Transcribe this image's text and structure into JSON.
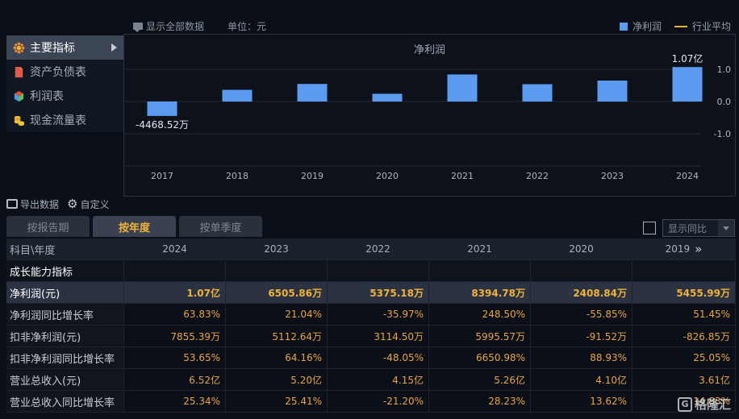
{
  "toolbar": {
    "show_all": "显示全部数据",
    "unit": "单位：元",
    "legend_net_profit": "净利润",
    "legend_industry_avg": "行业平均"
  },
  "menu": {
    "items": [
      {
        "label": "主要指标",
        "icon": "flower-icon",
        "active": true
      },
      {
        "label": "资产负债表",
        "icon": "document-icon",
        "active": false
      },
      {
        "label": "利润表",
        "icon": "cube-icon",
        "active": false
      },
      {
        "label": "现金流量表",
        "icon": "coins-icon",
        "active": false
      }
    ]
  },
  "chart_data": {
    "type": "bar",
    "title": "净利润",
    "categories": [
      "2017",
      "2018",
      "2019",
      "2020",
      "2021",
      "2022",
      "2023",
      "2024"
    ],
    "series": [
      {
        "name": "净利润",
        "values": [
          -0.4469,
          0.3631,
          0.5456,
          0.2409,
          0.8395,
          0.5375,
          0.6506,
          1.07
        ]
      }
    ],
    "yticks": [
      "1.0",
      "0.0",
      "-1.0"
    ],
    "ylim": [
      -2.0,
      1.5
    ],
    "annotations": [
      {
        "category": "2017",
        "text": "-4468.52万"
      },
      {
        "category": "2024",
        "text": "1.07亿"
      }
    ],
    "bar_color": "#5b9bf0",
    "grid": true
  },
  "tools": {
    "export": "导出数据",
    "customize": "自定义"
  },
  "tabs": [
    "按报告期",
    "按年度",
    "按单季度"
  ],
  "active_tab": 1,
  "yoy_select": "显示同比",
  "table": {
    "header_label": "科目\\年度",
    "years": [
      "2024",
      "2023",
      "2022",
      "2021",
      "2020",
      "2019"
    ],
    "section_label": "成长能力指标",
    "rows": [
      {
        "label": "净利润(元)",
        "values": [
          "1.07亿",
          "6505.86万",
          "5375.18万",
          "8394.78万",
          "2408.84万",
          "5455.99万"
        ],
        "highlight": true
      },
      {
        "label": "净利润同比增长率",
        "values": [
          "63.83%",
          "21.04%",
          "-35.97%",
          "248.50%",
          "-55.85%",
          "51.45%"
        ]
      },
      {
        "label": "扣非净利润(元)",
        "values": [
          "7855.39万",
          "5112.64万",
          "3114.50万",
          "5995.57万",
          "-91.52万",
          "-826.85万"
        ]
      },
      {
        "label": "扣非净利润同比增长率",
        "values": [
          "53.65%",
          "64.16%",
          "-48.05%",
          "6650.98%",
          "88.93%",
          "25.05%"
        ]
      },
      {
        "label": "营业总收入(元)",
        "values": [
          "6.52亿",
          "5.20亿",
          "4.15亿",
          "5.26亿",
          "4.10亿",
          "3.61亿"
        ]
      },
      {
        "label": "营业总收入同比增长率",
        "values": [
          "25.34%",
          "25.41%",
          "-21.20%",
          "28.23%",
          "13.62%",
          "14.83%"
        ]
      }
    ]
  },
  "watermark": "格隆汇",
  "colors": {
    "background": "#0b1018",
    "bar": "#5b9bf0",
    "industry_line": "#e6b43c",
    "value_text": "#e9a34a",
    "active_tab_text": "#f0b23a"
  }
}
